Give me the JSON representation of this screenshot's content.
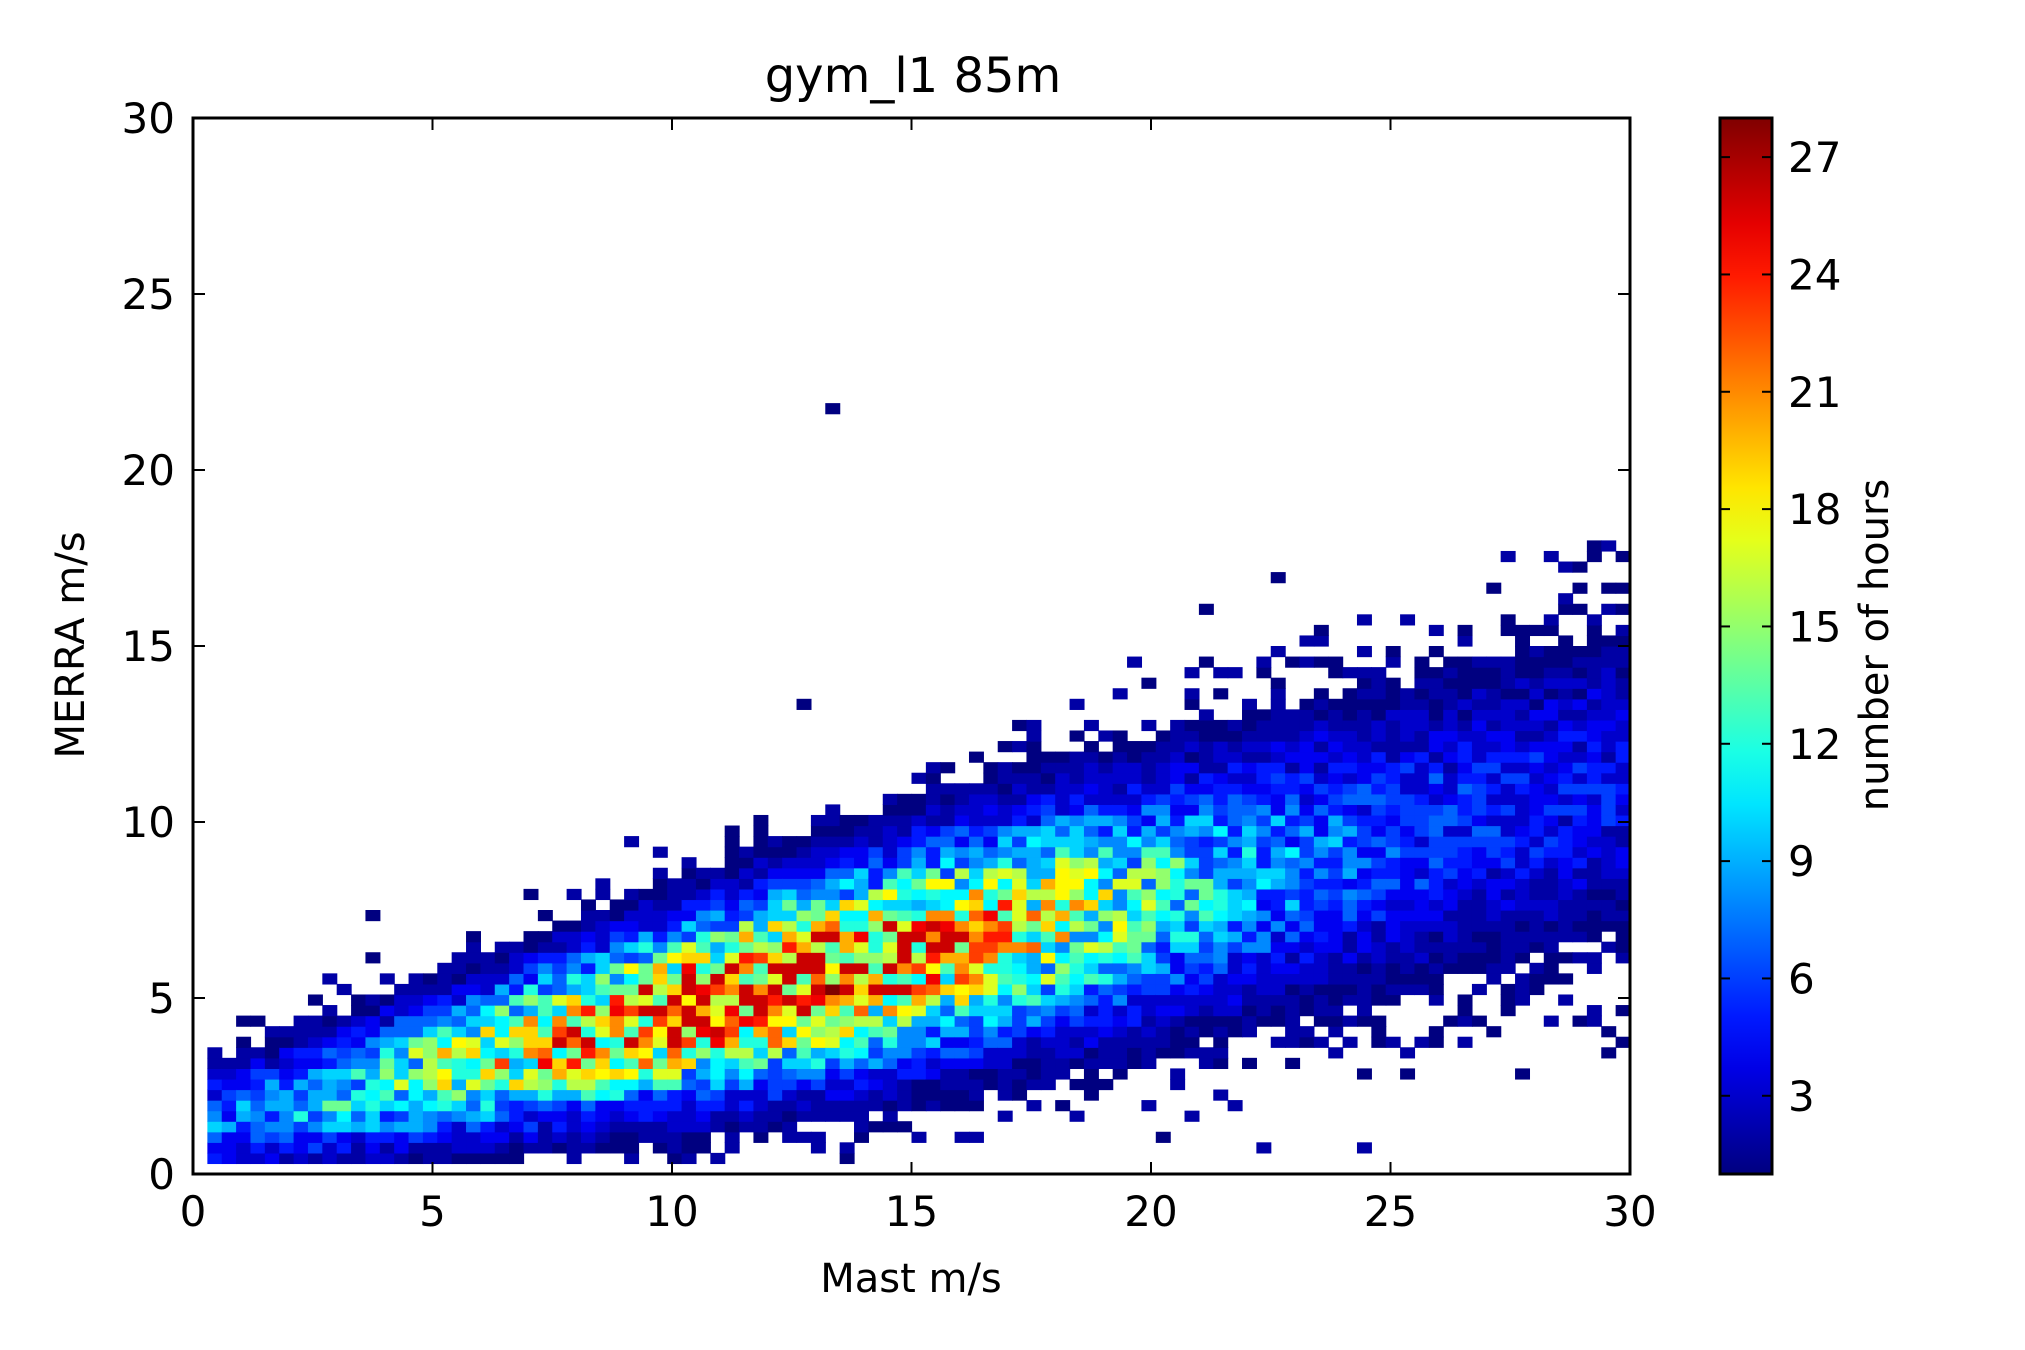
{
  "chart_data": {
    "type": "heatmap",
    "title": "gym_l1 85m",
    "xlabel": "Mast m/s",
    "ylabel": "MERRA m/s",
    "xlim": [
      0,
      30
    ],
    "ylim": [
      0,
      30
    ],
    "xticks": [
      "0",
      "5",
      "10",
      "15",
      "20",
      "25",
      "30"
    ],
    "yticks": [
      "0",
      "5",
      "10",
      "15",
      "20",
      "25",
      "30"
    ],
    "colorbar": {
      "label": "number of hours",
      "ticks": [
        "3",
        "6",
        "9",
        "12",
        "15",
        "18",
        "21",
        "24",
        "27"
      ],
      "range": [
        1,
        28
      ],
      "colormap": "jet"
    },
    "bins": 100,
    "description_of_data": "2D histogram of hourly wind speeds; dense band from about (1, 1.5) to (30, 11), peak density about 27 hours near Mast 13 m/s, MERRA 5.2 m/s.",
    "density_model": {
      "slope": 0.33,
      "intercept": 1.3,
      "max_count": 28
    },
    "outliers": [
      {
        "x": 13.2,
        "y": 21.7,
        "count": 1
      },
      {
        "x": 12.8,
        "y": 13.3,
        "count": 1
      },
      {
        "x": 29.8,
        "y": 15.0,
        "count": 1
      }
    ],
    "peak_cells": [
      {
        "x": 13.2,
        "y": 5.2,
        "count": 28
      },
      {
        "x": 10.7,
        "y": 4.1,
        "count": 25
      },
      {
        "x": 15.5,
        "y": 6.1,
        "count": 24
      },
      {
        "x": 9.3,
        "y": 3.2,
        "count": 22
      },
      {
        "x": 16.2,
        "y": 6.4,
        "count": 23
      },
      {
        "x": 11.2,
        "y": 4.2,
        "count": 22
      }
    ]
  }
}
